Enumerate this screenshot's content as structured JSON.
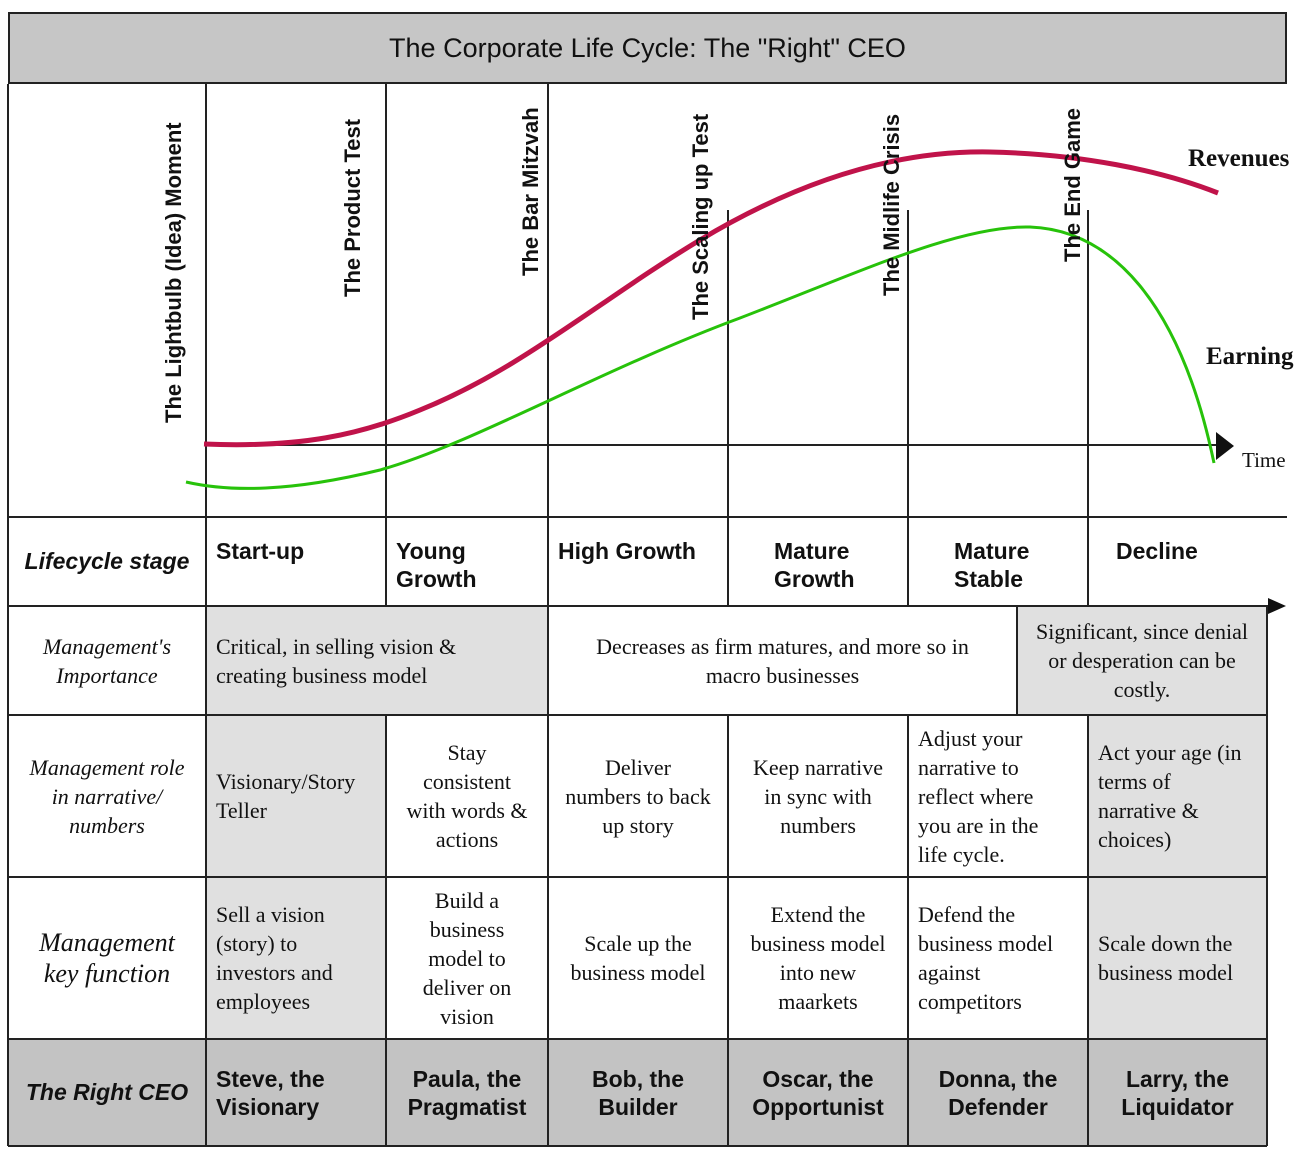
{
  "title": "The Corporate Life Cycle: The \"Right\" CEO",
  "milestones": [
    "The Lightbulb (Idea) Moment",
    "The Product Test",
    "The Bar Mitzvah",
    "The Scaling up Test",
    "The Midlife Crisis",
    "The End Game"
  ],
  "curves": {
    "revenues_label": "Revenues",
    "earnings_label": "Earnings",
    "axis_label": "Time",
    "revenues_color": "#c0134a",
    "earnings_color": "#27c20a"
  },
  "rows": {
    "stage": {
      "label": "Lifecycle stage",
      "values": [
        "Start-up",
        "Young\nGrowth",
        "High Growth",
        "Mature\nGrowth",
        "Mature\nStable",
        "Decline"
      ]
    },
    "importance": {
      "label": "Management's\nImportance",
      "values": [
        "Critical, in selling vision &\ncreating business model",
        "Decreases as firm matures, and more so in\nmacro businesses",
        "Significant, since denial\nor desperation can be\ncostly."
      ]
    },
    "role": {
      "label": "Management role\nin narrative/\nnumbers",
      "values": [
        "Visionary/Story\nTeller",
        "Stay\nconsistent\nwith words &\nactions",
        "Deliver\nnumbers to back\nup story",
        "Keep narrative\nin sync with\nnumbers",
        "Adjust your\nnarrative to\nreflect where\nyou are in the\nlife cycle.",
        "Act your age (in\nterms of\nnarrative &\nchoices)"
      ]
    },
    "function": {
      "label": "Management\nkey function",
      "values": [
        "Sell a vision\n(story) to\ninvestors and\nemployees",
        "Build a\nbusiness\nmodel to\ndeliver on\nvision",
        "Scale up the\nbusiness model",
        "Extend the\nbusiness model\ninto new\nmaarkets",
        "Defend the\nbusiness model\nagainst\ncompetitors",
        "Scale down the\nbusiness model"
      ]
    },
    "ceo": {
      "label": "The Right CEO",
      "values": [
        "Steve, the\nVisionary",
        "Paula, the\nPragmatist",
        "Bob, the\nBuilder",
        "Oscar, the\nOpportunist",
        "Donna, the\nDefender",
        "Larry, the\nLiquidator"
      ]
    }
  }
}
